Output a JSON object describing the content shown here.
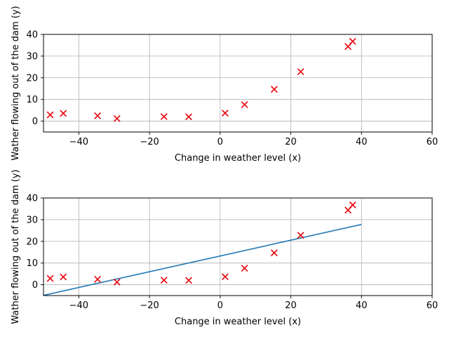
{
  "chart_data": [
    {
      "type": "scatter",
      "xlabel": "Change in weather level (x)",
      "ylabel": "Wather flowing out of the dam (y)",
      "xlim": [
        -50,
        60
      ],
      "ylim": [
        -5,
        40
      ],
      "xticks": [
        -40,
        -20,
        0,
        20,
        40,
        60
      ],
      "yticks": [
        0,
        10,
        20,
        30,
        40
      ],
      "xtick_labels": [
        "−40",
        "−20",
        "0",
        "20",
        "40",
        "60"
      ],
      "ytick_labels": [
        "0",
        "10",
        "20",
        "30",
        "40"
      ],
      "grid": true,
      "marker": "x",
      "marker_color": "#e8000b",
      "points": [
        {
          "x": -48.1,
          "y": 2.9
        },
        {
          "x": -44.4,
          "y": 3.6
        },
        {
          "x": -34.7,
          "y": 2.5
        },
        {
          "x": -29.2,
          "y": 1.2
        },
        {
          "x": -15.9,
          "y": 2.1
        },
        {
          "x": -8.9,
          "y": 2.0
        },
        {
          "x": 1.4,
          "y": 3.7
        },
        {
          "x": 6.9,
          "y": 7.6
        },
        {
          "x": 15.3,
          "y": 14.7
        },
        {
          "x": 22.8,
          "y": 22.8
        },
        {
          "x": 36.2,
          "y": 34.4
        },
        {
          "x": 37.5,
          "y": 36.8
        }
      ]
    },
    {
      "type": "scatter",
      "xlabel": "Change in weather level (x)",
      "ylabel": "Wather flowing out of the dam (y)",
      "xlim": [
        -50,
        60
      ],
      "ylim": [
        -5,
        40
      ],
      "xticks": [
        -40,
        -20,
        0,
        20,
        40,
        60
      ],
      "yticks": [
        0,
        10,
        20,
        30,
        40
      ],
      "xtick_labels": [
        "−40",
        "−20",
        "0",
        "20",
        "40",
        "60"
      ],
      "ytick_labels": [
        "0",
        "10",
        "20",
        "30",
        "40"
      ],
      "grid": true,
      "marker": "x",
      "marker_color": "#e8000b",
      "line_color": "#1f77b4",
      "points": [
        {
          "x": -48.1,
          "y": 2.9
        },
        {
          "x": -44.4,
          "y": 3.6
        },
        {
          "x": -34.7,
          "y": 2.5
        },
        {
          "x": -29.2,
          "y": 1.2
        },
        {
          "x": -15.9,
          "y": 2.1
        },
        {
          "x": -8.9,
          "y": 2.0
        },
        {
          "x": 1.4,
          "y": 3.7
        },
        {
          "x": 6.9,
          "y": 7.6
        },
        {
          "x": 15.3,
          "y": 14.7
        },
        {
          "x": 22.8,
          "y": 22.8
        },
        {
          "x": 36.2,
          "y": 34.4
        },
        {
          "x": 37.5,
          "y": 36.8
        }
      ],
      "fit_line": [
        {
          "x": -50,
          "y": -4.9
        },
        {
          "x": 40,
          "y": 27.8
        }
      ]
    }
  ]
}
